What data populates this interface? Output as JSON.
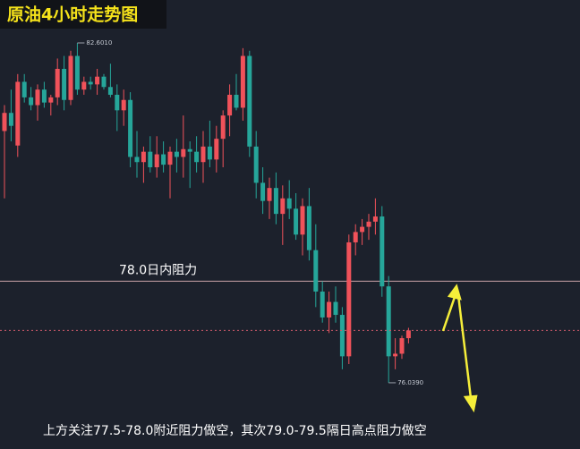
{
  "chart_data": {
    "type": "candlestick",
    "title": "原油4小时走势图",
    "annotation": "上方关注77.5-78.0附近阻力做空，其次79.0-79.5隔日高点阻力做空",
    "resistance": {
      "value": 78.0,
      "label": "78.0日内阻力"
    },
    "high_marker": {
      "value": 82.601,
      "label": "82.6010"
    },
    "low_marker": {
      "value": 76.039,
      "label": "76.0390"
    },
    "ylim": [
      74.76,
      83.43
    ],
    "up_color": "#f0525a",
    "down_color": "#26a69a",
    "ohlc": [
      [
        80.9,
        81.4,
        79.6,
        81.25
      ],
      [
        81.25,
        81.7,
        80.7,
        81.0
      ],
      [
        80.62,
        82.0,
        80.4,
        81.85
      ],
      [
        81.85,
        82.0,
        81.45,
        81.55
      ],
      [
        81.55,
        81.75,
        81.3,
        81.4
      ],
      [
        81.4,
        81.8,
        81.1,
        81.7
      ],
      [
        81.7,
        81.85,
        81.35,
        81.45
      ],
      [
        81.45,
        81.6,
        81.2,
        81.55
      ],
      [
        81.55,
        82.3,
        81.4,
        82.1
      ],
      [
        82.1,
        82.35,
        81.3,
        81.5
      ],
      [
        81.5,
        82.45,
        81.4,
        82.35
      ],
      [
        82.35,
        82.601,
        81.6,
        81.7
      ],
      [
        81.7,
        81.95,
        81.6,
        81.85
      ],
      [
        81.85,
        81.95,
        81.7,
        81.8
      ],
      [
        81.8,
        82.1,
        81.6,
        81.95
      ],
      [
        81.95,
        82.0,
        81.7,
        81.75
      ],
      [
        81.75,
        82.2,
        81.55,
        81.6
      ],
      [
        81.6,
        81.8,
        80.9,
        81.3
      ],
      [
        81.3,
        81.7,
        81.0,
        81.5
      ],
      [
        81.5,
        81.65,
        80.2,
        80.4
      ],
      [
        80.4,
        80.9,
        80.0,
        80.3
      ],
      [
        80.3,
        80.6,
        79.9,
        80.5
      ],
      [
        80.5,
        80.8,
        80.1,
        80.2
      ],
      [
        80.2,
        80.8,
        80.0,
        80.45
      ],
      [
        80.45,
        80.7,
        80.1,
        80.25
      ],
      [
        80.25,
        80.6,
        79.6,
        80.5
      ],
      [
        80.5,
        80.75,
        80.1,
        80.4
      ],
      [
        80.4,
        81.2,
        80.0,
        80.55
      ],
      [
        80.55,
        80.7,
        79.8,
        80.5
      ],
      [
        80.5,
        80.8,
        80.1,
        80.3
      ],
      [
        80.3,
        80.9,
        79.9,
        80.6
      ],
      [
        80.6,
        81.1,
        80.2,
        80.35
      ],
      [
        80.35,
        81.0,
        80.1,
        80.75
      ],
      [
        80.75,
        81.3,
        80.2,
        81.2
      ],
      [
        81.2,
        81.8,
        80.8,
        81.6
      ],
      [
        81.6,
        82.0,
        81.3,
        81.35
      ],
      [
        81.35,
        82.5,
        81.1,
        82.35
      ],
      [
        82.35,
        82.45,
        80.4,
        80.6
      ],
      [
        80.6,
        80.9,
        79.6,
        79.9
      ],
      [
        79.9,
        80.2,
        79.3,
        79.55
      ],
      [
        79.55,
        80.0,
        79.2,
        79.8
      ],
      [
        79.8,
        80.1,
        79.1,
        79.3
      ],
      [
        79.3,
        79.85,
        78.7,
        79.6
      ],
      [
        79.6,
        79.95,
        79.2,
        79.4
      ],
      [
        79.4,
        79.7,
        78.8,
        78.9
      ],
      [
        78.9,
        79.6,
        78.5,
        79.45
      ],
      [
        79.45,
        79.8,
        78.4,
        78.6
      ],
      [
        78.6,
        79.1,
        77.5,
        77.8
      ],
      [
        77.8,
        78.0,
        77.2,
        77.3
      ],
      [
        77.3,
        77.8,
        77.0,
        77.6
      ],
      [
        77.6,
        77.9,
        77.2,
        77.35
      ],
      [
        77.35,
        77.5,
        76.3,
        76.55
      ],
      [
        76.55,
        78.9,
        76.4,
        78.75
      ],
      [
        78.75,
        79.1,
        78.5,
        78.95
      ],
      [
        78.95,
        79.2,
        78.7,
        79.05
      ],
      [
        79.05,
        79.3,
        78.8,
        79.15
      ],
      [
        79.15,
        79.6,
        78.9,
        79.25
      ],
      [
        79.25,
        79.45,
        77.7,
        77.9
      ],
      [
        77.9,
        78.1,
        76.039,
        76.55
      ],
      [
        76.55,
        76.9,
        76.3,
        76.6
      ],
      [
        76.6,
        76.95,
        76.5,
        76.9
      ],
      [
        76.9,
        77.1,
        76.8,
        77.05
      ]
    ]
  }
}
